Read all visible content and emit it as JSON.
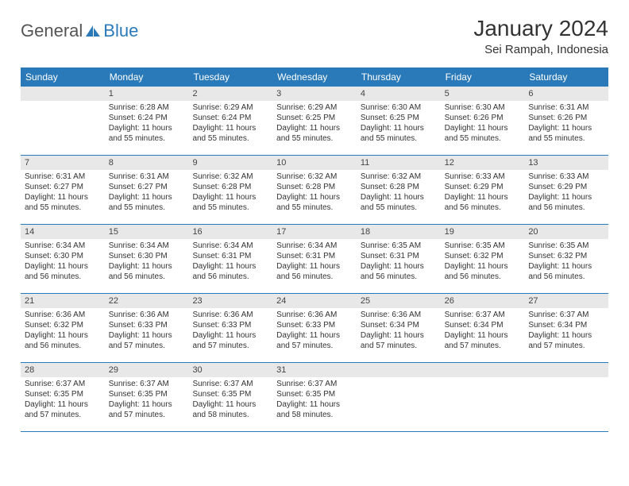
{
  "header": {
    "logo_general": "General",
    "logo_blue": "Blue",
    "month_title": "January 2024",
    "location": "Sei Rampah, Indonesia"
  },
  "colors": {
    "header_bg": "#2a7ab9",
    "header_text": "#ffffff",
    "daynum_bg": "#e8e8e8",
    "text": "#333333",
    "rule": "#2a7ab9"
  },
  "day_names": [
    "Sunday",
    "Monday",
    "Tuesday",
    "Wednesday",
    "Thursday",
    "Friday",
    "Saturday"
  ],
  "weeks": [
    [
      {
        "n": "",
        "sr": "",
        "ss": "",
        "dl": ""
      },
      {
        "n": "1",
        "sr": "Sunrise: 6:28 AM",
        "ss": "Sunset: 6:24 PM",
        "dl": "Daylight: 11 hours and 55 minutes."
      },
      {
        "n": "2",
        "sr": "Sunrise: 6:29 AM",
        "ss": "Sunset: 6:24 PM",
        "dl": "Daylight: 11 hours and 55 minutes."
      },
      {
        "n": "3",
        "sr": "Sunrise: 6:29 AM",
        "ss": "Sunset: 6:25 PM",
        "dl": "Daylight: 11 hours and 55 minutes."
      },
      {
        "n": "4",
        "sr": "Sunrise: 6:30 AM",
        "ss": "Sunset: 6:25 PM",
        "dl": "Daylight: 11 hours and 55 minutes."
      },
      {
        "n": "5",
        "sr": "Sunrise: 6:30 AM",
        "ss": "Sunset: 6:26 PM",
        "dl": "Daylight: 11 hours and 55 minutes."
      },
      {
        "n": "6",
        "sr": "Sunrise: 6:31 AM",
        "ss": "Sunset: 6:26 PM",
        "dl": "Daylight: 11 hours and 55 minutes."
      }
    ],
    [
      {
        "n": "7",
        "sr": "Sunrise: 6:31 AM",
        "ss": "Sunset: 6:27 PM",
        "dl": "Daylight: 11 hours and 55 minutes."
      },
      {
        "n": "8",
        "sr": "Sunrise: 6:31 AM",
        "ss": "Sunset: 6:27 PM",
        "dl": "Daylight: 11 hours and 55 minutes."
      },
      {
        "n": "9",
        "sr": "Sunrise: 6:32 AM",
        "ss": "Sunset: 6:28 PM",
        "dl": "Daylight: 11 hours and 55 minutes."
      },
      {
        "n": "10",
        "sr": "Sunrise: 6:32 AM",
        "ss": "Sunset: 6:28 PM",
        "dl": "Daylight: 11 hours and 55 minutes."
      },
      {
        "n": "11",
        "sr": "Sunrise: 6:32 AM",
        "ss": "Sunset: 6:28 PM",
        "dl": "Daylight: 11 hours and 55 minutes."
      },
      {
        "n": "12",
        "sr": "Sunrise: 6:33 AM",
        "ss": "Sunset: 6:29 PM",
        "dl": "Daylight: 11 hours and 56 minutes."
      },
      {
        "n": "13",
        "sr": "Sunrise: 6:33 AM",
        "ss": "Sunset: 6:29 PM",
        "dl": "Daylight: 11 hours and 56 minutes."
      }
    ],
    [
      {
        "n": "14",
        "sr": "Sunrise: 6:34 AM",
        "ss": "Sunset: 6:30 PM",
        "dl": "Daylight: 11 hours and 56 minutes."
      },
      {
        "n": "15",
        "sr": "Sunrise: 6:34 AM",
        "ss": "Sunset: 6:30 PM",
        "dl": "Daylight: 11 hours and 56 minutes."
      },
      {
        "n": "16",
        "sr": "Sunrise: 6:34 AM",
        "ss": "Sunset: 6:31 PM",
        "dl": "Daylight: 11 hours and 56 minutes."
      },
      {
        "n": "17",
        "sr": "Sunrise: 6:34 AM",
        "ss": "Sunset: 6:31 PM",
        "dl": "Daylight: 11 hours and 56 minutes."
      },
      {
        "n": "18",
        "sr": "Sunrise: 6:35 AM",
        "ss": "Sunset: 6:31 PM",
        "dl": "Daylight: 11 hours and 56 minutes."
      },
      {
        "n": "19",
        "sr": "Sunrise: 6:35 AM",
        "ss": "Sunset: 6:32 PM",
        "dl": "Daylight: 11 hours and 56 minutes."
      },
      {
        "n": "20",
        "sr": "Sunrise: 6:35 AM",
        "ss": "Sunset: 6:32 PM",
        "dl": "Daylight: 11 hours and 56 minutes."
      }
    ],
    [
      {
        "n": "21",
        "sr": "Sunrise: 6:36 AM",
        "ss": "Sunset: 6:32 PM",
        "dl": "Daylight: 11 hours and 56 minutes."
      },
      {
        "n": "22",
        "sr": "Sunrise: 6:36 AM",
        "ss": "Sunset: 6:33 PM",
        "dl": "Daylight: 11 hours and 57 minutes."
      },
      {
        "n": "23",
        "sr": "Sunrise: 6:36 AM",
        "ss": "Sunset: 6:33 PM",
        "dl": "Daylight: 11 hours and 57 minutes."
      },
      {
        "n": "24",
        "sr": "Sunrise: 6:36 AM",
        "ss": "Sunset: 6:33 PM",
        "dl": "Daylight: 11 hours and 57 minutes."
      },
      {
        "n": "25",
        "sr": "Sunrise: 6:36 AM",
        "ss": "Sunset: 6:34 PM",
        "dl": "Daylight: 11 hours and 57 minutes."
      },
      {
        "n": "26",
        "sr": "Sunrise: 6:37 AM",
        "ss": "Sunset: 6:34 PM",
        "dl": "Daylight: 11 hours and 57 minutes."
      },
      {
        "n": "27",
        "sr": "Sunrise: 6:37 AM",
        "ss": "Sunset: 6:34 PM",
        "dl": "Daylight: 11 hours and 57 minutes."
      }
    ],
    [
      {
        "n": "28",
        "sr": "Sunrise: 6:37 AM",
        "ss": "Sunset: 6:35 PM",
        "dl": "Daylight: 11 hours and 57 minutes."
      },
      {
        "n": "29",
        "sr": "Sunrise: 6:37 AM",
        "ss": "Sunset: 6:35 PM",
        "dl": "Daylight: 11 hours and 57 minutes."
      },
      {
        "n": "30",
        "sr": "Sunrise: 6:37 AM",
        "ss": "Sunset: 6:35 PM",
        "dl": "Daylight: 11 hours and 58 minutes."
      },
      {
        "n": "31",
        "sr": "Sunrise: 6:37 AM",
        "ss": "Sunset: 6:35 PM",
        "dl": "Daylight: 11 hours and 58 minutes."
      },
      {
        "n": "",
        "sr": "",
        "ss": "",
        "dl": ""
      },
      {
        "n": "",
        "sr": "",
        "ss": "",
        "dl": ""
      },
      {
        "n": "",
        "sr": "",
        "ss": "",
        "dl": ""
      }
    ]
  ]
}
